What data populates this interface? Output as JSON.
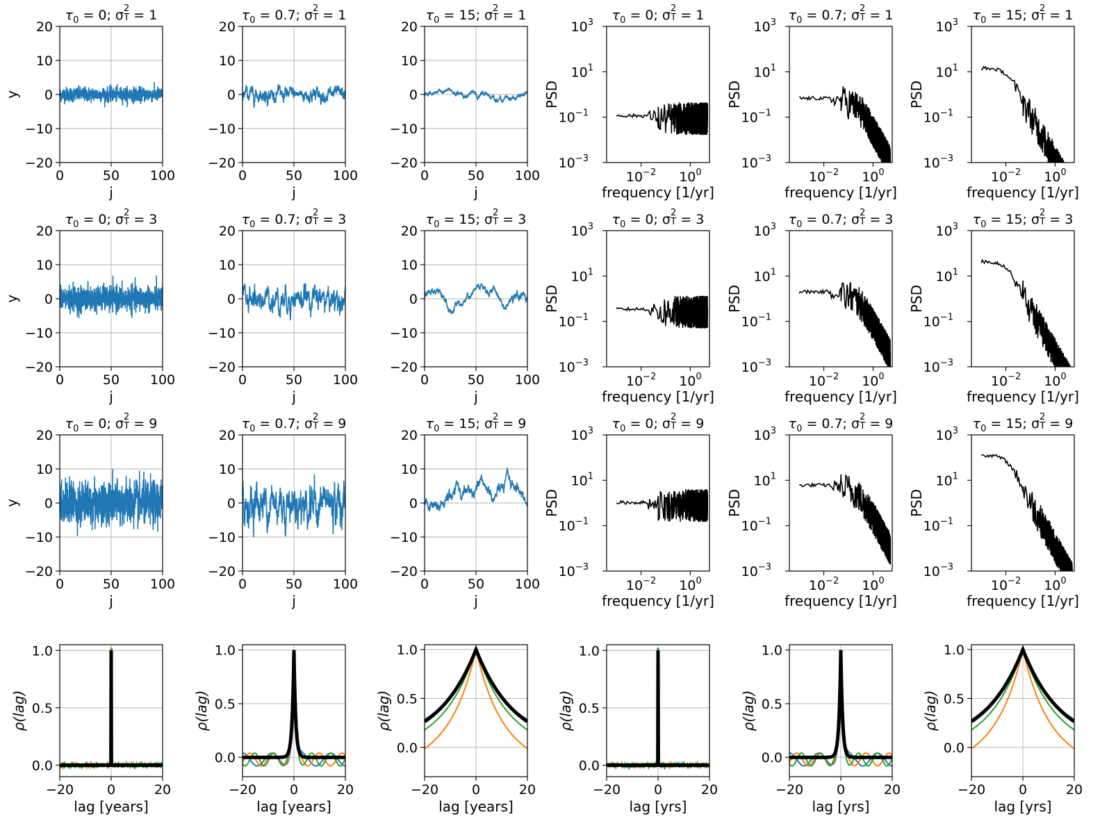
{
  "colors": {
    "ts": "#1f77b4",
    "psd": "#000000",
    "acf": [
      "#1f77b4",
      "#ff7f0e",
      "#2ca02c"
    ],
    "acf_model": "#000000",
    "grid": "#b0b0b0"
  },
  "chart_data": [
    {
      "type": "line",
      "kind": "ts",
      "title": "τ₀ = 0; σ²T = 1",
      "title_prefix": "τ",
      "title_tau_sub": "0",
      "title_tau_val": " = 0; σ",
      "title_sup": "2",
      "title_sub": "T",
      "title_rest": " = 1",
      "xlabel": "j",
      "ylabel": "y",
      "xlim": [
        0,
        100
      ],
      "ylim": [
        -20,
        20
      ],
      "xticks": [
        "0",
        "50",
        "100"
      ],
      "yticks": [
        "20",
        "10",
        "0",
        "−10",
        "−20"
      ],
      "grid": true,
      "x": [
        0,
        100
      ],
      "tau": 0,
      "variance": 1
    },
    {
      "type": "line",
      "kind": "ts",
      "title": "τ₀ = 0.7; σ²T = 1",
      "title_prefix": "τ",
      "title_tau_sub": "0",
      "title_tau_val": " = 0.7; σ",
      "title_sup": "2",
      "title_sub": "T",
      "title_rest": " = 1",
      "xlabel": "j",
      "ylabel": "",
      "xlim": [
        0,
        100
      ],
      "ylim": [
        -20,
        20
      ],
      "xticks": [
        "0",
        "50",
        "100"
      ],
      "yticks": [
        "20",
        "10",
        "0",
        "−10",
        "−20"
      ],
      "grid": true,
      "tau": 0.7,
      "variance": 1
    },
    {
      "type": "line",
      "kind": "ts",
      "title": "τ₀ = 15; σ²T = 1",
      "title_prefix": "τ",
      "title_tau_sub": "0",
      "title_tau_val": " = 15; σ",
      "title_sup": "2",
      "title_sub": "T",
      "title_rest": " = 1",
      "xlabel": "j",
      "ylabel": "",
      "xlim": [
        0,
        100
      ],
      "ylim": [
        -20,
        20
      ],
      "xticks": [
        "0",
        "50",
        "100"
      ],
      "yticks": [
        "20",
        "10",
        "0",
        "−10",
        "−20"
      ],
      "grid": true,
      "tau": 15,
      "variance": 1
    },
    {
      "type": "line",
      "kind": "psd",
      "title": "τ₀ = 0; σ²T = 1",
      "title_prefix": "τ",
      "title_tau_sub": "0",
      "title_tau_val": " = 0; σ",
      "title_sup": "2",
      "title_sub": "T",
      "title_rest": " = 1",
      "xlabel": "frequency [1/yr]",
      "ylabel": "PSD",
      "xscale": "log",
      "yscale": "log",
      "xlim": [
        0.0004,
        6
      ],
      "ylim": [
        0.001,
        1000
      ],
      "xtick_values": [
        0.01,
        1
      ],
      "xtick_exps": [
        "−2",
        "0"
      ],
      "ytick_values": [
        1000,
        10,
        0.1,
        0.001
      ],
      "ytick_exps": [
        "3",
        "1",
        "−1",
        "−3"
      ],
      "grid": false,
      "tau": 0,
      "variance": 1
    },
    {
      "type": "line",
      "kind": "psd",
      "title": "τ₀ = 0.7; σ²T = 1",
      "title_prefix": "τ",
      "title_tau_sub": "0",
      "title_tau_val": " = 0.7; σ",
      "title_sup": "2",
      "title_sub": "T",
      "title_rest": " = 1",
      "xlabel": "frequency [1/yr]",
      "ylabel": "PSD",
      "xscale": "log",
      "yscale": "log",
      "xlim": [
        0.0004,
        6
      ],
      "ylim": [
        0.001,
        1000
      ],
      "xtick_values": [
        0.01,
        1
      ],
      "xtick_exps": [
        "−2",
        "0"
      ],
      "ytick_values": [
        1000,
        10,
        0.1,
        0.001
      ],
      "ytick_exps": [
        "3",
        "1",
        "−1",
        "−3"
      ],
      "grid": false,
      "tau": 0.7,
      "variance": 1
    },
    {
      "type": "line",
      "kind": "psd",
      "title": "τ₀ = 15; σ²T = 1",
      "title_prefix": "τ",
      "title_tau_sub": "0",
      "title_tau_val": " = 15; σ",
      "title_sup": "2",
      "title_sub": "T",
      "title_rest": " = 1",
      "xlabel": "frequency [1/yr]",
      "ylabel": "PSD",
      "xscale": "log",
      "yscale": "log",
      "xlim": [
        0.0004,
        6
      ],
      "ylim": [
        0.001,
        1000
      ],
      "xtick_values": [
        0.01,
        1
      ],
      "xtick_exps": [
        "−2",
        "0"
      ],
      "ytick_values": [
        1000,
        10,
        0.1,
        0.001
      ],
      "ytick_exps": [
        "3",
        "1",
        "−1",
        "−3"
      ],
      "grid": false,
      "tau": 15,
      "variance": 1
    },
    {
      "type": "line",
      "kind": "ts",
      "title": "τ₀ = 0; σ²T = 3",
      "title_prefix": "τ",
      "title_tau_sub": "0",
      "title_tau_val": " = 0; σ",
      "title_sup": "2",
      "title_sub": "T",
      "title_rest": " = 3",
      "xlabel": "j",
      "ylabel": "y",
      "xlim": [
        0,
        100
      ],
      "ylim": [
        -20,
        20
      ],
      "xticks": [
        "0",
        "50",
        "100"
      ],
      "yticks": [
        "20",
        "10",
        "0",
        "−10",
        "−20"
      ],
      "grid": true,
      "tau": 0,
      "variance": 3
    },
    {
      "type": "line",
      "kind": "ts",
      "title": "τ₀ = 0.7; σ²T = 3",
      "title_prefix": "τ",
      "title_tau_sub": "0",
      "title_tau_val": " = 0.7; σ",
      "title_sup": "2",
      "title_sub": "T",
      "title_rest": " = 3",
      "xlabel": "j",
      "ylabel": "",
      "xlim": [
        0,
        100
      ],
      "ylim": [
        -20,
        20
      ],
      "xticks": [
        "0",
        "50",
        "100"
      ],
      "yticks": [
        "20",
        "10",
        "0",
        "−10",
        "−20"
      ],
      "grid": true,
      "tau": 0.7,
      "variance": 3
    },
    {
      "type": "line",
      "kind": "ts",
      "title": "τ₀ = 15; σ²T = 3",
      "title_prefix": "τ",
      "title_tau_sub": "0",
      "title_tau_val": " = 15; σ",
      "title_sup": "2",
      "title_sub": "T",
      "title_rest": " = 3",
      "xlabel": "j",
      "ylabel": "",
      "xlim": [
        0,
        100
      ],
      "ylim": [
        -20,
        20
      ],
      "xticks": [
        "0",
        "50",
        "100"
      ],
      "yticks": [
        "20",
        "10",
        "0",
        "−10",
        "−20"
      ],
      "grid": true,
      "tau": 15,
      "variance": 3
    },
    {
      "type": "line",
      "kind": "psd",
      "title": "τ₀ = 0; σ²T = 3",
      "title_prefix": "τ",
      "title_tau_sub": "0",
      "title_tau_val": " = 0; σ",
      "title_sup": "2",
      "title_sub": "T",
      "title_rest": " = 3",
      "xlabel": "frequency [1/yr]",
      "ylabel": "PSD",
      "xscale": "log",
      "yscale": "log",
      "xlim": [
        0.0004,
        6
      ],
      "ylim": [
        0.001,
        1000
      ],
      "xtick_values": [
        0.01,
        1
      ],
      "xtick_exps": [
        "−2",
        "0"
      ],
      "ytick_values": [
        1000,
        10,
        0.1,
        0.001
      ],
      "ytick_exps": [
        "3",
        "1",
        "−1",
        "−3"
      ],
      "grid": false,
      "tau": 0,
      "variance": 3
    },
    {
      "type": "line",
      "kind": "psd",
      "title": "τ₀ = 0.7; σ²T = 3",
      "title_prefix": "τ",
      "title_tau_sub": "0",
      "title_tau_val": " = 0.7; σ",
      "title_sup": "2",
      "title_sub": "T",
      "title_rest": " = 3",
      "xlabel": "frequency [1/yr]",
      "ylabel": "PSD",
      "xscale": "log",
      "yscale": "log",
      "xlim": [
        0.0004,
        6
      ],
      "ylim": [
        0.001,
        1000
      ],
      "xtick_values": [
        0.01,
        1
      ],
      "xtick_exps": [
        "−2",
        "0"
      ],
      "ytick_values": [
        1000,
        10,
        0.1,
        0.001
      ],
      "ytick_exps": [
        "3",
        "1",
        "−1",
        "−3"
      ],
      "grid": false,
      "tau": 0.7,
      "variance": 3
    },
    {
      "type": "line",
      "kind": "psd",
      "title": "τ₀ = 15; σ²T = 3",
      "title_prefix": "τ",
      "title_tau_sub": "0",
      "title_tau_val": " = 15; σ",
      "title_sup": "2",
      "title_sub": "T",
      "title_rest": " = 3",
      "xlabel": "frequency [1/yr]",
      "ylabel": "PSD",
      "xscale": "log",
      "yscale": "log",
      "xlim": [
        0.0004,
        6
      ],
      "ylim": [
        0.001,
        1000
      ],
      "xtick_values": [
        0.01,
        1
      ],
      "xtick_exps": [
        "−2",
        "0"
      ],
      "ytick_values": [
        1000,
        10,
        0.1,
        0.001
      ],
      "ytick_exps": [
        "3",
        "1",
        "−1",
        "−3"
      ],
      "grid": false,
      "tau": 15,
      "variance": 3
    },
    {
      "type": "line",
      "kind": "ts",
      "title": "τ₀ = 0; σ²T = 9",
      "title_prefix": "τ",
      "title_tau_sub": "0",
      "title_tau_val": " = 0; σ",
      "title_sup": "2",
      "title_sub": "T",
      "title_rest": " = 9",
      "xlabel": "j",
      "ylabel": "y",
      "xlim": [
        0,
        100
      ],
      "ylim": [
        -20,
        20
      ],
      "xticks": [
        "0",
        "50",
        "100"
      ],
      "yticks": [
        "20",
        "10",
        "0",
        "−10",
        "−20"
      ],
      "grid": true,
      "tau": 0,
      "variance": 9
    },
    {
      "type": "line",
      "kind": "ts",
      "title": "τ₀ = 0.7; σ²T = 9",
      "title_prefix": "τ",
      "title_tau_sub": "0",
      "title_tau_val": " = 0.7; σ",
      "title_sup": "2",
      "title_sub": "T",
      "title_rest": " = 9",
      "xlabel": "j",
      "ylabel": "",
      "xlim": [
        0,
        100
      ],
      "ylim": [
        -20,
        20
      ],
      "xticks": [
        "0",
        "50",
        "100"
      ],
      "yticks": [
        "20",
        "10",
        "0",
        "−10",
        "−20"
      ],
      "grid": true,
      "tau": 0.7,
      "variance": 9
    },
    {
      "type": "line",
      "kind": "ts",
      "title": "τ₀ = 15; σ²T = 9",
      "title_prefix": "τ",
      "title_tau_sub": "0",
      "title_tau_val": " = 15; σ",
      "title_sup": "2",
      "title_sub": "T",
      "title_rest": " = 9",
      "xlabel": "j",
      "ylabel": "",
      "xlim": [
        0,
        100
      ],
      "ylim": [
        -20,
        20
      ],
      "xticks": [
        "0",
        "50",
        "100"
      ],
      "yticks": [
        "20",
        "10",
        "0",
        "−10",
        "−20"
      ],
      "grid": true,
      "tau": 15,
      "variance": 9
    },
    {
      "type": "line",
      "kind": "psd",
      "title": "τ₀ = 0; σ²T = 9",
      "title_prefix": "τ",
      "title_tau_sub": "0",
      "title_tau_val": " = 0; σ",
      "title_sup": "2",
      "title_sub": "T",
      "title_rest": " = 9",
      "xlabel": "frequency [1/yr]",
      "ylabel": "PSD",
      "xscale": "log",
      "yscale": "log",
      "xlim": [
        0.0004,
        6
      ],
      "ylim": [
        0.001,
        1000
      ],
      "xtick_values": [
        0.01,
        1
      ],
      "xtick_exps": [
        "−2",
        "0"
      ],
      "ytick_values": [
        1000,
        10,
        0.1,
        0.001
      ],
      "ytick_exps": [
        "3",
        "1",
        "−1",
        "−3"
      ],
      "grid": false,
      "tau": 0,
      "variance": 9
    },
    {
      "type": "line",
      "kind": "psd",
      "title": "τ₀ = 0.7; σ²T = 9",
      "title_prefix": "τ",
      "title_tau_sub": "0",
      "title_tau_val": " = 0.7; σ",
      "title_sup": "2",
      "title_sub": "T",
      "title_rest": " = 9",
      "xlabel": "frequency [1/yr]",
      "ylabel": "PSD",
      "xscale": "log",
      "yscale": "log",
      "xlim": [
        0.0004,
        6
      ],
      "ylim": [
        0.001,
        1000
      ],
      "xtick_values": [
        0.01,
        1
      ],
      "xtick_exps": [
        "−2",
        "0"
      ],
      "ytick_values": [
        1000,
        10,
        0.1,
        0.001
      ],
      "ytick_exps": [
        "3",
        "1",
        "−1",
        "−3"
      ],
      "grid": false,
      "tau": 0.7,
      "variance": 9
    },
    {
      "type": "line",
      "kind": "psd",
      "title": "τ₀ = 15; σ²T = 9",
      "title_prefix": "τ",
      "title_tau_sub": "0",
      "title_tau_val": " = 15; σ",
      "title_sup": "2",
      "title_sub": "T",
      "title_rest": " = 9",
      "xlabel": "frequency [1/yr]",
      "ylabel": "PSD",
      "xscale": "log",
      "yscale": "log",
      "xlim": [
        0.0004,
        6
      ],
      "ylim": [
        0.001,
        1000
      ],
      "xtick_values": [
        0.01,
        1
      ],
      "xtick_exps": [
        "−2",
        "0"
      ],
      "ytick_values": [
        1000,
        10,
        0.1,
        0.001
      ],
      "ytick_exps": [
        "3",
        "1",
        "−1",
        "−3"
      ],
      "grid": false,
      "tau": 15,
      "variance": 9
    },
    {
      "type": "line",
      "kind": "acf",
      "title": "",
      "xlabel": "lag [years]",
      "ylabel": "ρ(lag)",
      "xlim": [
        -20,
        20
      ],
      "ylim": [
        -0.1,
        1.05
      ],
      "xticks": [
        "−20",
        "0",
        "20"
      ],
      "xtick_values": [
        -20,
        0,
        20
      ],
      "yticks": [
        "1.0",
        "0.5",
        "0.0"
      ],
      "ytick_values": [
        1,
        0.5,
        0
      ],
      "grid": true,
      "tau": 0
    },
    {
      "type": "line",
      "kind": "acf",
      "title": "",
      "xlabel": "lag [years]",
      "ylabel": "ρ(lag)",
      "xlim": [
        -20,
        20
      ],
      "ylim": [
        -0.18,
        1.05
      ],
      "xticks": [
        "−20",
        "0",
        "20"
      ],
      "xtick_values": [
        -20,
        0,
        20
      ],
      "yticks": [
        "1.0",
        "0.5",
        "0.0"
      ],
      "ytick_values": [
        1,
        0.5,
        0
      ],
      "grid": true,
      "tau": 0.7
    },
    {
      "type": "line",
      "kind": "acf",
      "title": "",
      "xlabel": "lag [years]",
      "ylabel": "ρ(lag)",
      "xlim": [
        -20,
        20
      ],
      "ylim": [
        -0.3,
        1.05
      ],
      "xticks": [
        "−20",
        "0",
        "20"
      ],
      "xtick_values": [
        -20,
        0,
        20
      ],
      "yticks": [
        "1.0",
        "0.5",
        "0.0"
      ],
      "ytick_values": [
        1,
        0.5,
        0
      ],
      "grid": true,
      "tau": 15
    },
    {
      "type": "line",
      "kind": "acf",
      "title": "",
      "xlabel": "lag [yrs]",
      "ylabel": "ρ(lag)",
      "xlim": [
        -20,
        20
      ],
      "ylim": [
        -0.1,
        1.05
      ],
      "xticks": [
        "−20",
        "0",
        "20"
      ],
      "xtick_values": [
        -20,
        0,
        20
      ],
      "yticks": [
        "1.0",
        "0.5",
        "0.0"
      ],
      "ytick_values": [
        1,
        0.5,
        0
      ],
      "grid": true,
      "tau": 0
    },
    {
      "type": "line",
      "kind": "acf",
      "title": "",
      "xlabel": "lag [yrs]",
      "ylabel": "ρ(lag)",
      "xlim": [
        -20,
        20
      ],
      "ylim": [
        -0.18,
        1.05
      ],
      "xticks": [
        "−20",
        "0",
        "20"
      ],
      "xtick_values": [
        -20,
        0,
        20
      ],
      "yticks": [
        "1.0",
        "0.5",
        "0.0"
      ],
      "ytick_values": [
        1,
        0.5,
        0
      ],
      "grid": true,
      "tau": 0.7
    },
    {
      "type": "line",
      "kind": "acf",
      "title": "",
      "xlabel": "lag [yrs]",
      "ylabel": "ρ(lag)",
      "xlim": [
        -20,
        20
      ],
      "ylim": [
        -0.3,
        1.05
      ],
      "xticks": [
        "−20",
        "0",
        "20"
      ],
      "xtick_values": [
        -20,
        0,
        20
      ],
      "yticks": [
        "1.0",
        "0.5",
        "0.0"
      ],
      "ytick_values": [
        1,
        0.5,
        0
      ],
      "grid": true,
      "tau": 15
    }
  ]
}
